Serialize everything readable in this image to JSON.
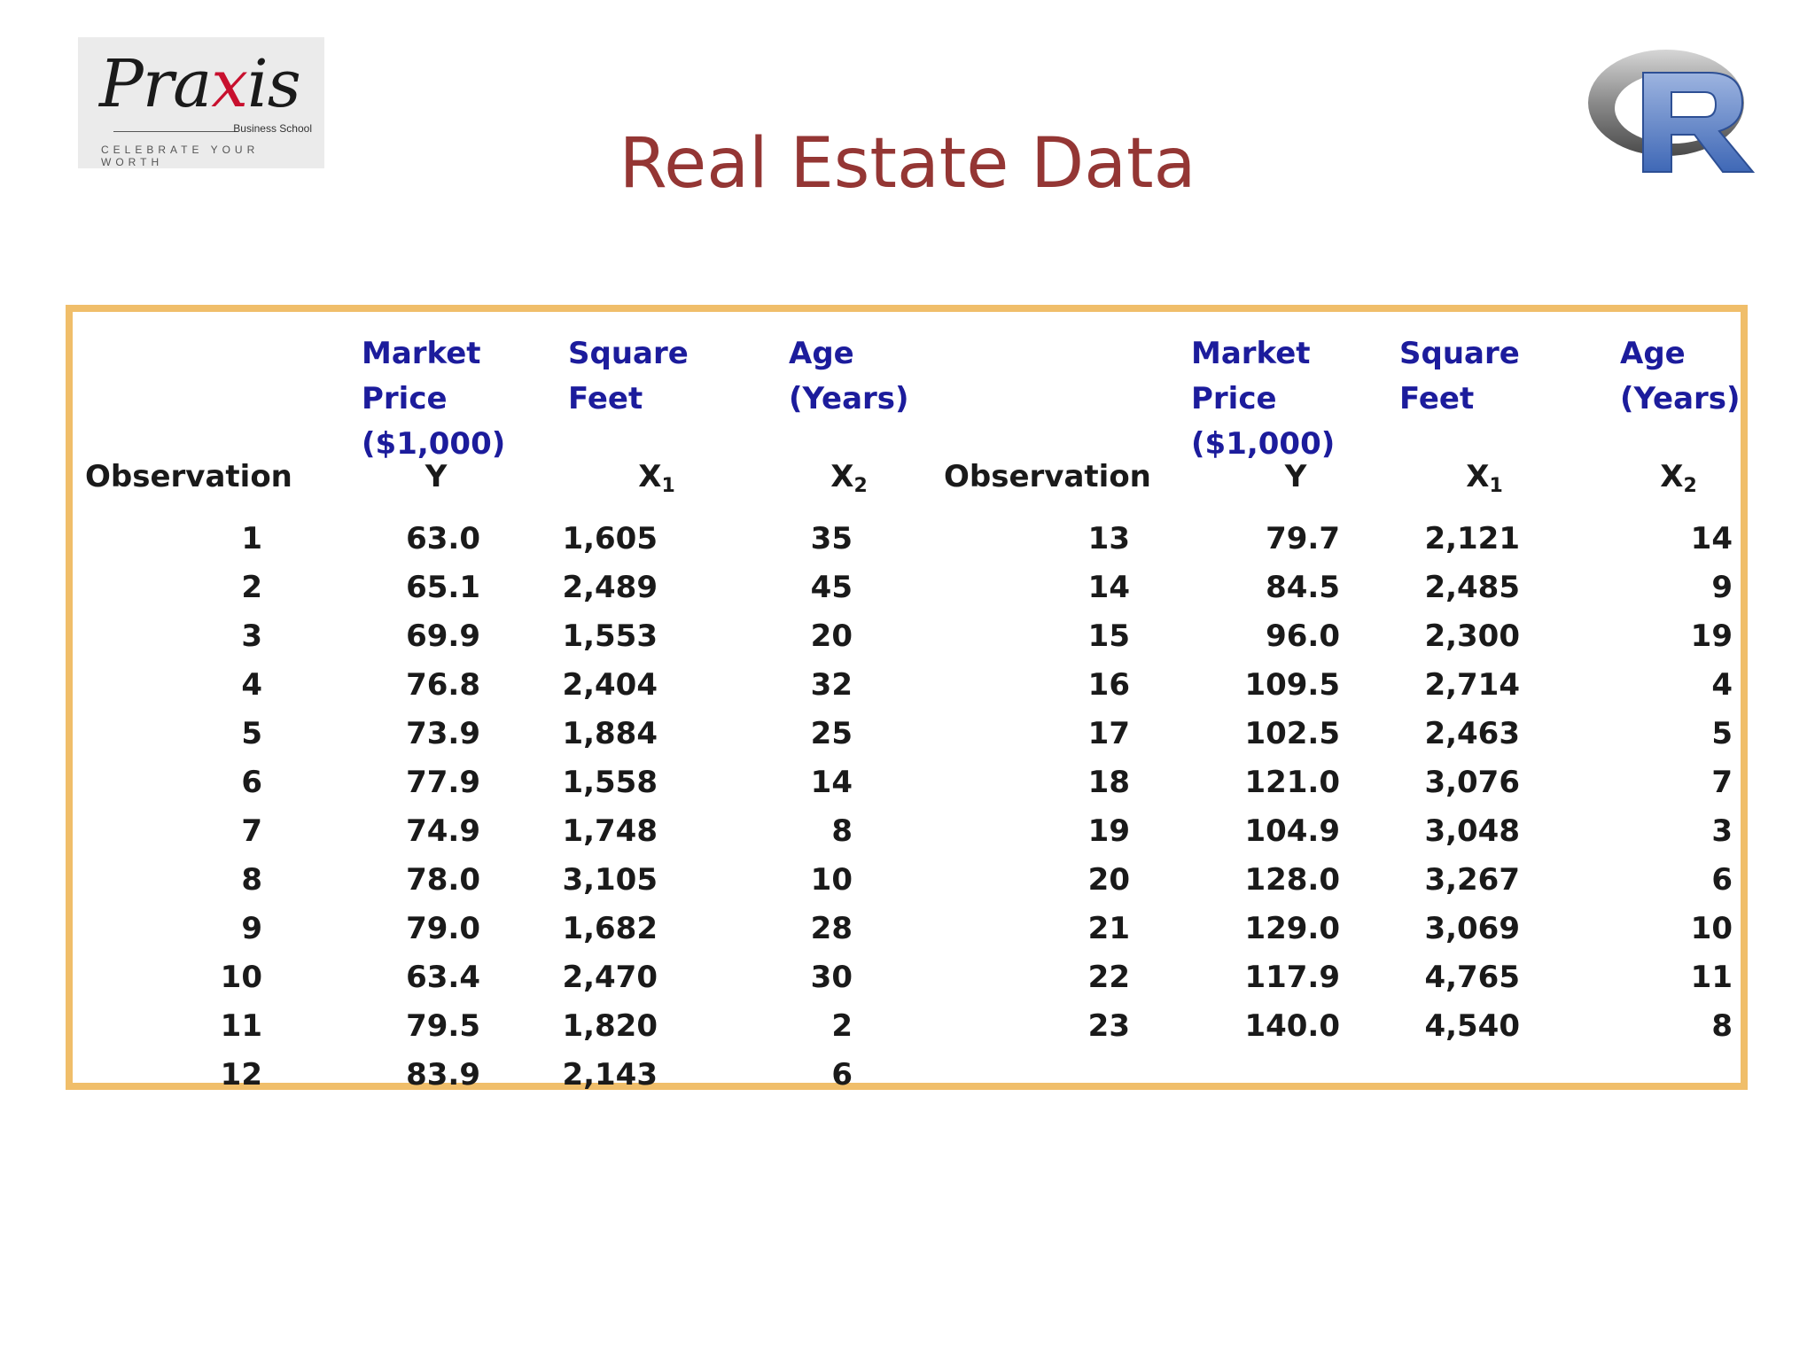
{
  "title": "Real Estate Data",
  "logo_left": {
    "name": "Praxis",
    "subtitle": "Business School",
    "tagline": "CELEBRATE YOUR WORTH"
  },
  "logo_right": {
    "name": "R"
  },
  "colors": {
    "title": "#943634",
    "header_text": "#1c1c9c",
    "frame_border": "#f0be6a"
  },
  "table": {
    "headers": {
      "observation": "Observation",
      "price": "Market Price ($1,000)",
      "price_symbol": "Y",
      "sqft": "Square Feet",
      "sqft_symbol": "X",
      "sqft_sub": "1",
      "age": "Age (Years)",
      "age_symbol": "X",
      "age_sub": "2"
    },
    "left": [
      {
        "obs": "1",
        "y": "63.0",
        "x1": "1,605",
        "x2": "35"
      },
      {
        "obs": "2",
        "y": "65.1",
        "x1": "2,489",
        "x2": "45"
      },
      {
        "obs": "3",
        "y": "69.9",
        "x1": "1,553",
        "x2": "20"
      },
      {
        "obs": "4",
        "y": "76.8",
        "x1": "2,404",
        "x2": "32"
      },
      {
        "obs": "5",
        "y": "73.9",
        "x1": "1,884",
        "x2": "25"
      },
      {
        "obs": "6",
        "y": "77.9",
        "x1": "1,558",
        "x2": "14"
      },
      {
        "obs": "7",
        "y": "74.9",
        "x1": "1,748",
        "x2": "8"
      },
      {
        "obs": "8",
        "y": "78.0",
        "x1": "3,105",
        "x2": "10"
      },
      {
        "obs": "9",
        "y": "79.0",
        "x1": "1,682",
        "x2": "28"
      },
      {
        "obs": "10",
        "y": "63.4",
        "x1": "2,470",
        "x2": "30"
      },
      {
        "obs": "11",
        "y": "79.5",
        "x1": "1,820",
        "x2": "2"
      },
      {
        "obs": "12",
        "y": "83.9",
        "x1": "2,143",
        "x2": "6"
      }
    ],
    "right": [
      {
        "obs": "13",
        "y": "79.7",
        "x1": "2,121",
        "x2": "14"
      },
      {
        "obs": "14",
        "y": "84.5",
        "x1": "2,485",
        "x2": "9"
      },
      {
        "obs": "15",
        "y": "96.0",
        "x1": "2,300",
        "x2": "19"
      },
      {
        "obs": "16",
        "y": "109.5",
        "x1": "2,714",
        "x2": "4"
      },
      {
        "obs": "17",
        "y": "102.5",
        "x1": "2,463",
        "x2": "5"
      },
      {
        "obs": "18",
        "y": "121.0",
        "x1": "3,076",
        "x2": "7"
      },
      {
        "obs": "19",
        "y": "104.9",
        "x1": "3,048",
        "x2": "3"
      },
      {
        "obs": "20",
        "y": "128.0",
        "x1": "3,267",
        "x2": "6"
      },
      {
        "obs": "21",
        "y": "129.0",
        "x1": "3,069",
        "x2": "10"
      },
      {
        "obs": "22",
        "y": "117.9",
        "x1": "4,765",
        "x2": "11"
      },
      {
        "obs": "23",
        "y": "140.0",
        "x1": "4,540",
        "x2": "8"
      }
    ]
  }
}
